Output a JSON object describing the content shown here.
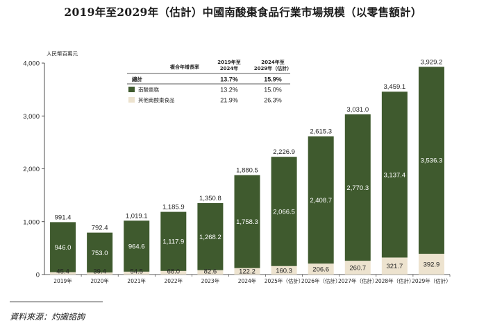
{
  "chart_data": {
    "type": "bar",
    "stacked": true,
    "title": "2019年至2029年（估計）中國南酸棗食品行業市場規模（以零售額計）",
    "ylabel": "人民幣百萬元",
    "ylim": [
      0,
      4000
    ],
    "yticks": [
      "0",
      "1,000",
      "2,000",
      "3,000",
      "4,000"
    ],
    "ytick_values": [
      0,
      1000,
      2000,
      3000,
      4000
    ],
    "categories": [
      "2019年",
      "2020年",
      "2021年",
      "2022年",
      "2023年",
      "2024年",
      "2025年（估計）",
      "2026年（估計）",
      "2027年（估計）",
      "2028年（估計）",
      "2029年（估計）"
    ],
    "totals": [
      991.4,
      792.4,
      1019.1,
      1185.9,
      1350.8,
      1880.5,
      2226.9,
      2615.3,
      3031.0,
      3459.1,
      3929.2
    ],
    "total_labels": [
      "991.4",
      "792.4",
      "1,019.1",
      "1,185.9",
      "1,350.8",
      "1,880.5",
      "2,226.9",
      "2,615.3",
      "3,031.0",
      "3,459.1",
      "3,929.2"
    ],
    "series": [
      {
        "name": "其他南酸棗食品",
        "color": "#ede3cf",
        "values": [
          45.4,
          39.4,
          54.5,
          68.0,
          82.6,
          122.2,
          160.3,
          206.6,
          260.7,
          321.7,
          392.9
        ],
        "labels": [
          "45.4",
          "39.4",
          "54.5",
          "68.0",
          "82.6",
          "122.2",
          "160.3",
          "206.6",
          "260.7",
          "321.7",
          "392.9"
        ]
      },
      {
        "name": "南酸棗糕",
        "color": "#3f5a2e",
        "values": [
          946.0,
          753.0,
          964.6,
          1117.9,
          1268.2,
          1758.3,
          2066.5,
          2408.7,
          2770.3,
          3137.4,
          3536.3
        ],
        "labels": [
          "946.0",
          "753.0",
          "964.6",
          "1,117.9",
          "1,268.2",
          "1,758.3",
          "2,066.5",
          "2,408.7",
          "2,770.3",
          "3,137.4",
          "3,536.3"
        ]
      }
    ],
    "legend": {
      "header_label": "複合年增長率",
      "col1_header": [
        "2019年至",
        "2024年"
      ],
      "col2_header": [
        "2024年至",
        "2029年（估計）"
      ],
      "rows": [
        {
          "label": "總計",
          "c1": "13.7%",
          "c2": "15.9%",
          "bold": true
        },
        {
          "label": "南酸棗糕",
          "c1": "13.2%",
          "c2": "15.0%",
          "swatch": "#3f5a2e"
        },
        {
          "label": "其他南酸棗食品",
          "c1": "21.9%",
          "c2": "26.3%",
          "swatch": "#ede3cf"
        }
      ]
    }
  },
  "source_note": "資料來源：灼識諮詢"
}
